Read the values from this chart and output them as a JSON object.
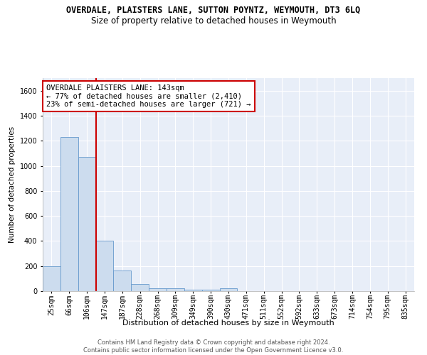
{
  "title": "OVERDALE, PLAISTERS LANE, SUTTON POYNTZ, WEYMOUTH, DT3 6LQ",
  "subtitle": "Size of property relative to detached houses in Weymouth",
  "xlabel": "Distribution of detached houses by size in Weymouth",
  "ylabel": "Number of detached properties",
  "bar_color": "#ccdcee",
  "bar_edge_color": "#6699cc",
  "vline_color": "#cc0000",
  "vline_x_index": 3,
  "annotation_text": "OVERDALE PLAISTERS LANE: 143sqm\n← 77% of detached houses are smaller (2,410)\n23% of semi-detached houses are larger (721) →",
  "annotation_box_color": "white",
  "annotation_box_edge": "#cc0000",
  "categories": [
    "25sqm",
    "66sqm",
    "106sqm",
    "147sqm",
    "187sqm",
    "228sqm",
    "268sqm",
    "309sqm",
    "349sqm",
    "390sqm",
    "430sqm",
    "471sqm",
    "511sqm",
    "552sqm",
    "592sqm",
    "633sqm",
    "673sqm",
    "714sqm",
    "754sqm",
    "795sqm",
    "835sqm"
  ],
  "values": [
    200,
    1230,
    1070,
    405,
    165,
    55,
    25,
    20,
    12,
    12,
    20,
    0,
    0,
    0,
    0,
    0,
    0,
    0,
    0,
    0,
    0
  ],
  "ylim": [
    0,
    1700
  ],
  "yticks": [
    0,
    200,
    400,
    600,
    800,
    1000,
    1200,
    1400,
    1600
  ],
  "footer_line1": "Contains HM Land Registry data © Crown copyright and database right 2024.",
  "footer_line2": "Contains public sector information licensed under the Open Government Licence v3.0.",
  "plot_bg_color": "#e8eef8",
  "title_fontsize": 8.5,
  "subtitle_fontsize": 8.5,
  "xlabel_fontsize": 8,
  "ylabel_fontsize": 7.5,
  "footer_fontsize": 6.0,
  "annotation_fontsize": 7.5,
  "tick_fontsize": 7
}
